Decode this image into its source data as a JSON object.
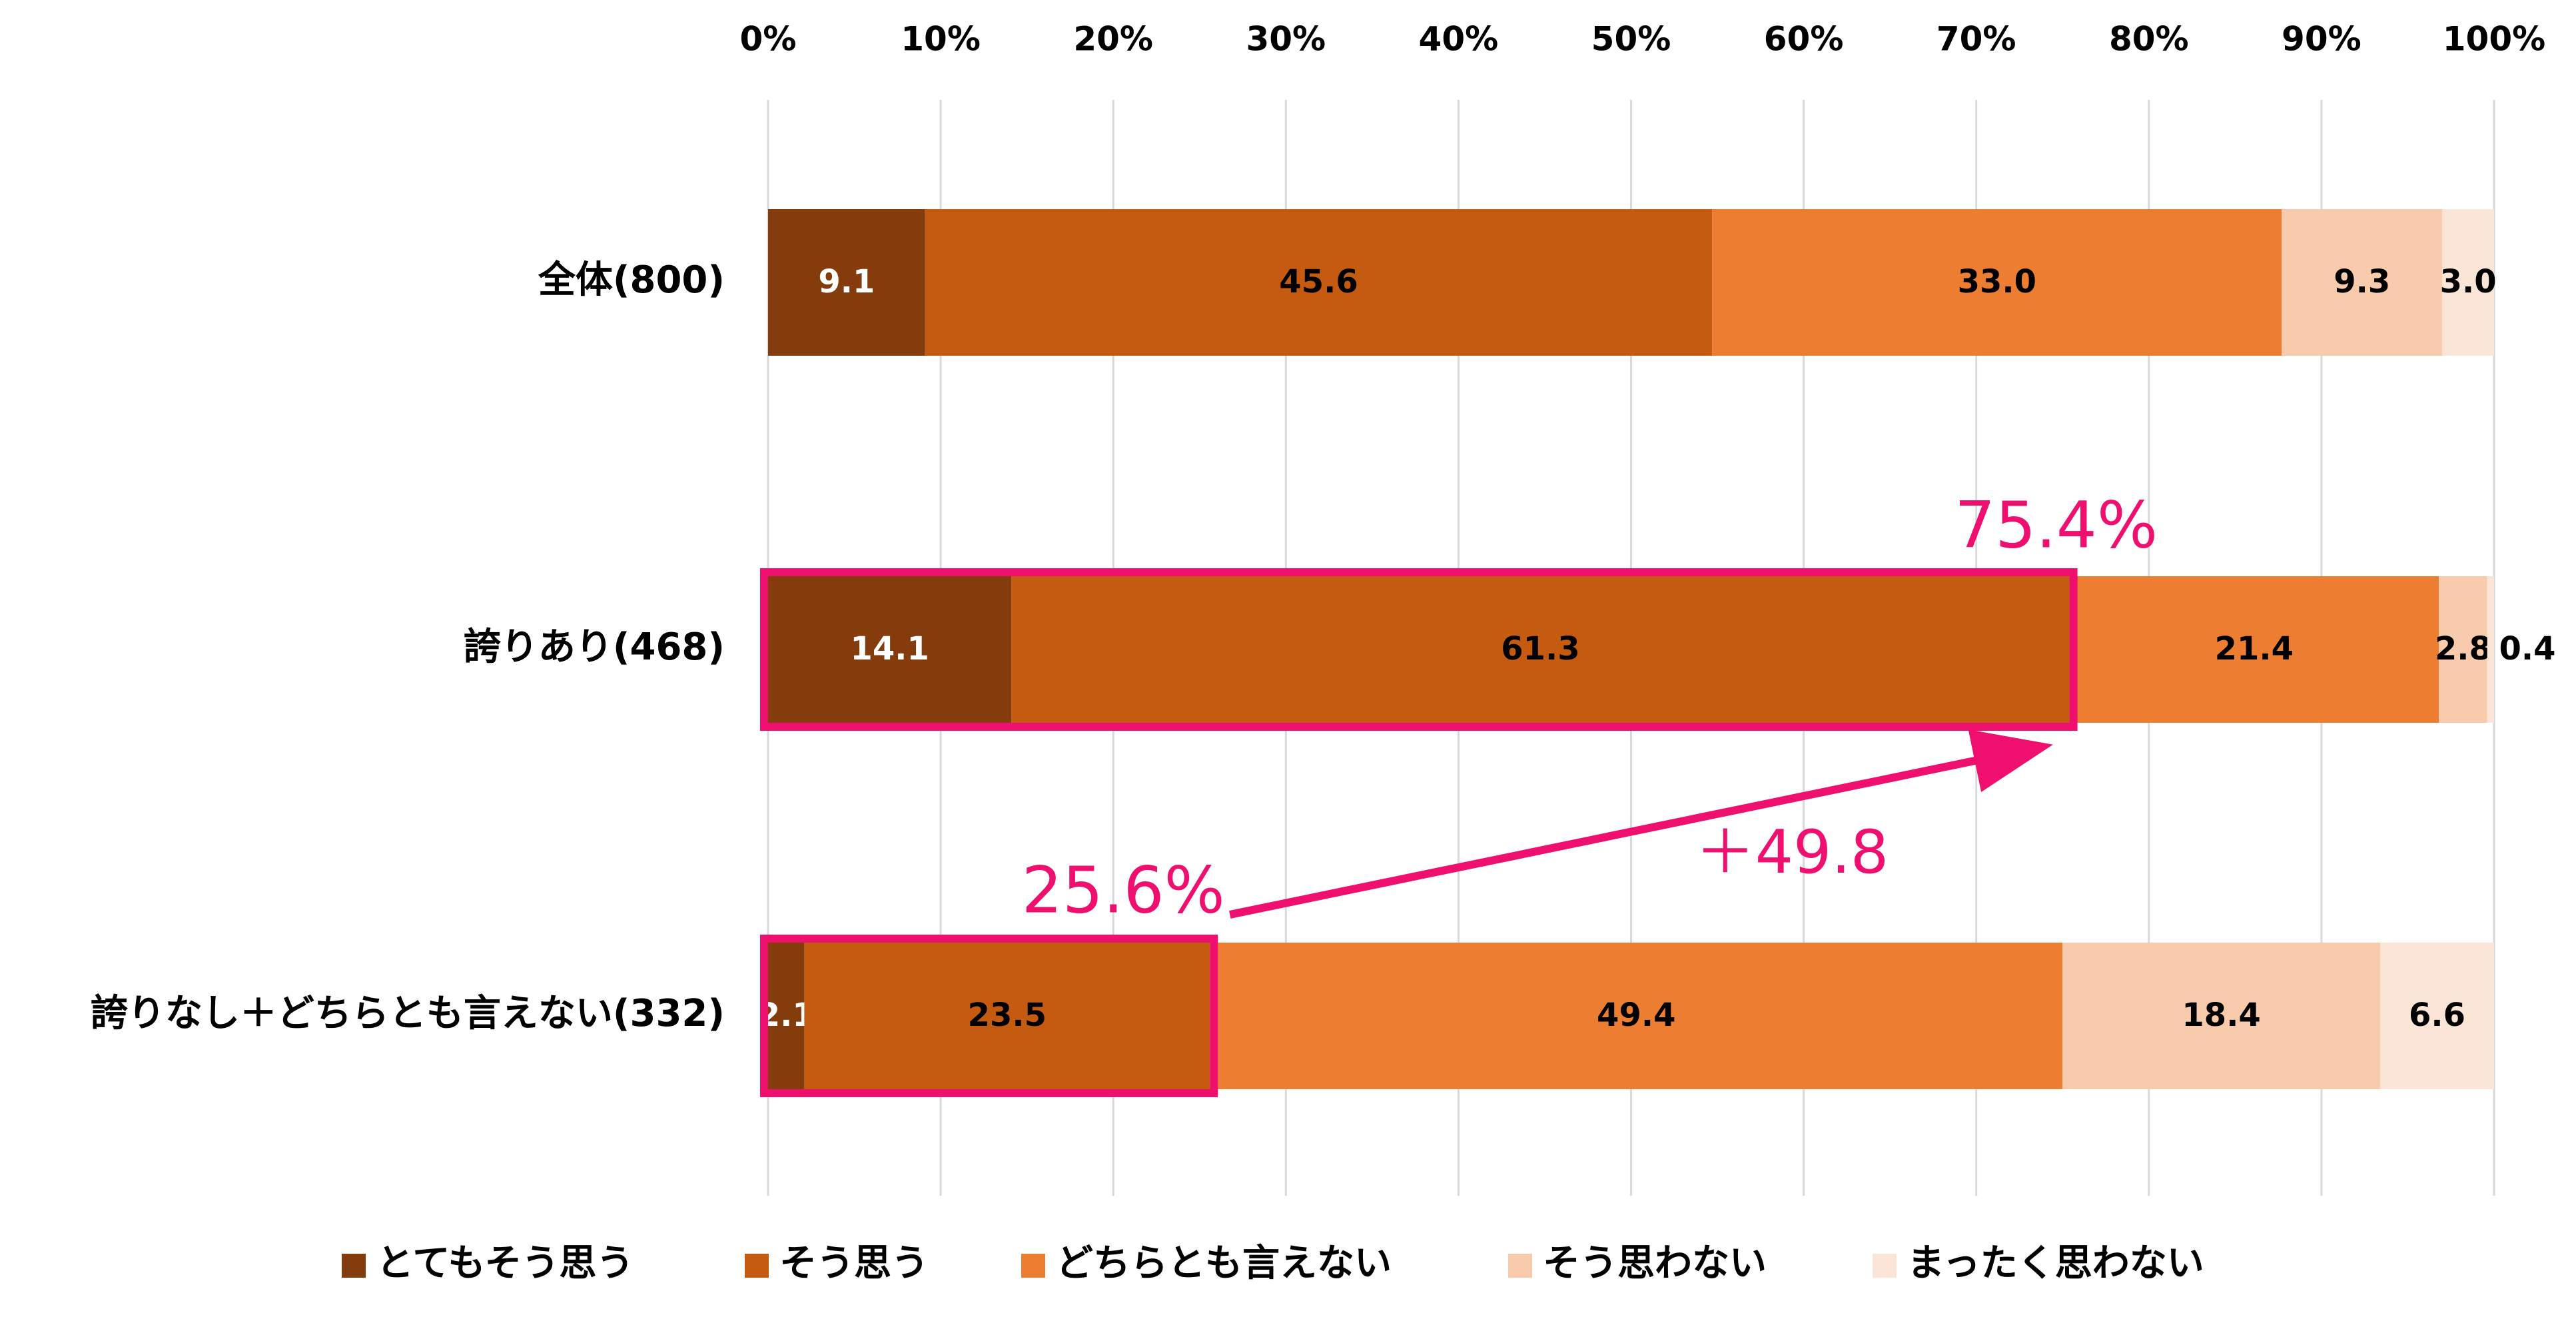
{
  "chart_data": {
    "type": "bar",
    "orientation": "horizontal",
    "stacked": true,
    "percent_stacked": true,
    "xlim": [
      0,
      100
    ],
    "x_ticks": [
      "0%",
      "10%",
      "20%",
      "30%",
      "40%",
      "50%",
      "60%",
      "70%",
      "80%",
      "90%",
      "100%"
    ],
    "grid": "vertical",
    "legend_position": "bottom",
    "categories": [
      "全体(800)",
      "誇りあり(468)",
      "誇りなし＋どちらとも言えない(332)"
    ],
    "series": [
      {
        "name": "とてもそう思う",
        "color": "#843C0C",
        "values": [
          9.1,
          14.1,
          2.1
        ],
        "labels": [
          "9.1",
          "14.1",
          "2.1"
        ]
      },
      {
        "name": "そう思う",
        "color": "#C55A11",
        "values": [
          45.6,
          61.3,
          23.5
        ],
        "labels": [
          "45.6",
          "61.3",
          "23.5"
        ]
      },
      {
        "name": "どちらとも言えない",
        "color": "#ED7D31",
        "values": [
          33.0,
          21.4,
          49.4
        ],
        "labels": [
          "33.0",
          "21.4",
          "49.4"
        ]
      },
      {
        "name": "そう思わない",
        "color": "#F8CBAD",
        "values": [
          9.3,
          2.8,
          18.4
        ],
        "labels": [
          "9.3",
          "2.8",
          "18.4"
        ]
      },
      {
        "name": "まったく思わない",
        "color": "#FBE5D6",
        "values": [
          3.0,
          0.4,
          6.6
        ],
        "labels": [
          "3.0",
          "0.4",
          "6.6"
        ]
      }
    ],
    "annotations": {
      "highlight_color": "#EF0F6E",
      "top_box": {
        "category_index": 1,
        "value": 75.4,
        "label": "75.4%"
      },
      "bottom_box": {
        "category_index": 2,
        "value": 25.6,
        "label": "25.6%"
      },
      "arrow_label": "＋49.8"
    }
  }
}
